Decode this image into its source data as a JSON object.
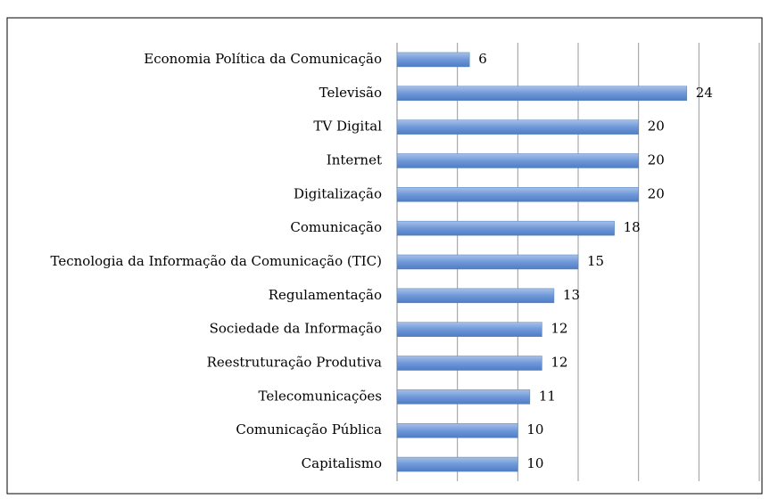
{
  "chart_data": {
    "type": "barh",
    "categories": [
      "Economia Política da Comunicação",
      "Televisão",
      "TV Digital",
      "Internet",
      "Digitalização",
      "Comunicação",
      "Tecnologia da Informação da Comunicação (TIC)",
      "Regulamentação",
      "Sociedade da Informação",
      "Reestruturação Produtiva",
      "Telecomunicações",
      "Comunicação Pública",
      "Capitalismo"
    ],
    "values": [
      6,
      24,
      20,
      20,
      20,
      18,
      15,
      13,
      12,
      12,
      11,
      10,
      10
    ],
    "color": "#4f81bd",
    "xlim": [
      0,
      30
    ],
    "xticks": [
      0,
      5,
      10,
      15,
      20,
      25,
      30
    ],
    "grid": true
  }
}
